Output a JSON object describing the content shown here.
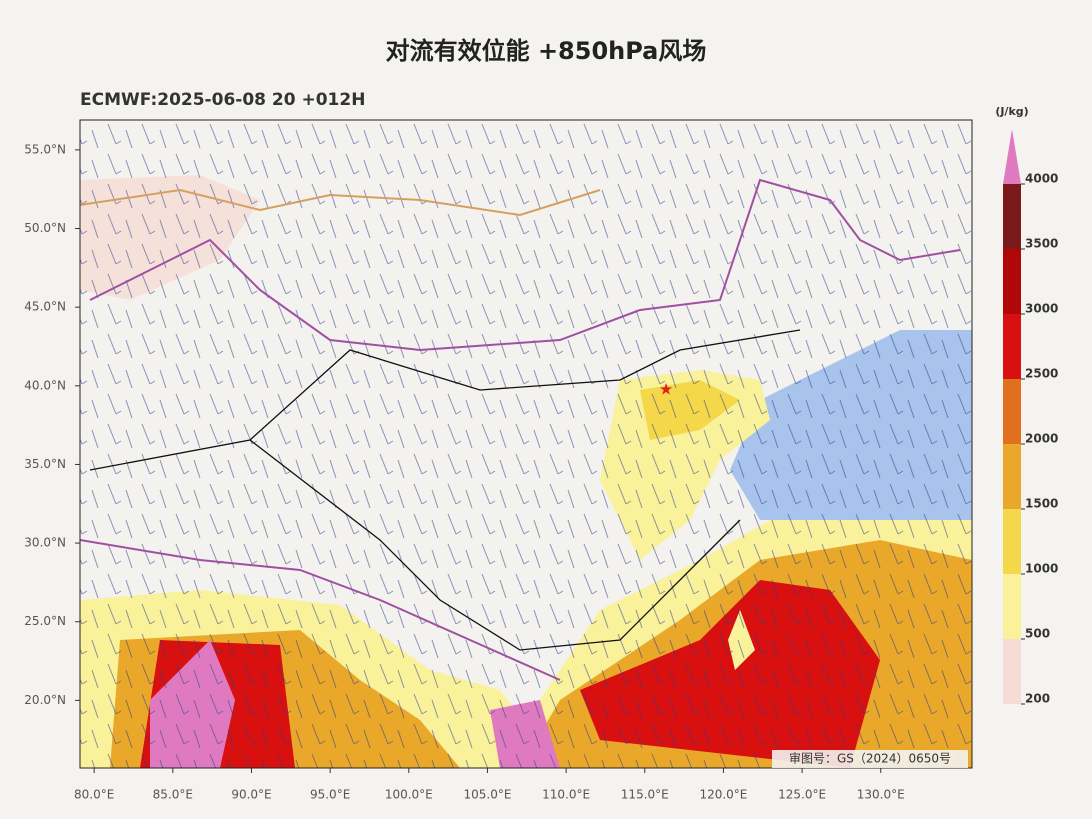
{
  "title": "对流有效位能 +850hPa风场",
  "subtitle": "ECMWF:2025-06-08 20 +012H",
  "map": {
    "xlim": [
      79.1,
      135.8
    ],
    "ylim": [
      15.7,
      56.9
    ],
    "xticks": [
      {
        "value": 80,
        "label": "80.0°E"
      },
      {
        "value": 85,
        "label": "85.0°E"
      },
      {
        "value": 90,
        "label": "90.0°E"
      },
      {
        "value": 95,
        "label": "95.0°E"
      },
      {
        "value": 100,
        "label": "100.0°E"
      },
      {
        "value": 105,
        "label": "105.0°E"
      },
      {
        "value": 110,
        "label": "110.0°E"
      },
      {
        "value": 115,
        "label": "115.0°E"
      },
      {
        "value": 120,
        "label": "120.0°E"
      },
      {
        "value": 125,
        "label": "125.0°E"
      },
      {
        "value": 130,
        "label": "130.0°E"
      }
    ],
    "yticks": [
      {
        "value": 55,
        "label": "55.0°N"
      },
      {
        "value": 50,
        "label": "50.0°N"
      },
      {
        "value": 45,
        "label": "45.0°N"
      },
      {
        "value": 40,
        "label": "40.0°N"
      },
      {
        "value": 35,
        "label": "35.0°N"
      },
      {
        "value": 30,
        "label": "30.0°N"
      },
      {
        "value": 25,
        "label": "25.0°N"
      },
      {
        "value": 20,
        "label": "20.0°N"
      }
    ],
    "review_number": "审图号：GS（2024）0650号"
  },
  "colorbar": {
    "unit": "(J/kg)",
    "ticks": [
      200,
      500,
      1000,
      1500,
      2000,
      2500,
      3000,
      3500,
      4000
    ],
    "colors": [
      "#f6dcd4",
      "#faf29a",
      "#f5d84a",
      "#eaa82a",
      "#e07020",
      "#d81010",
      "#b00808",
      "#7a1a1a"
    ],
    "extend_color": "#e07ac0"
  }
}
